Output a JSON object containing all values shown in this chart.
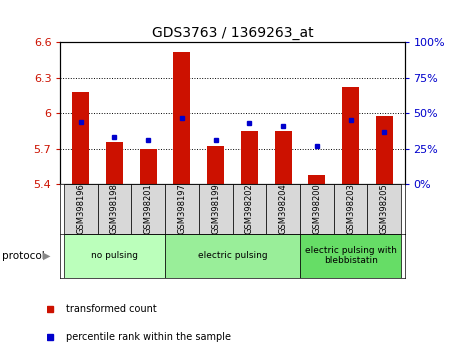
{
  "title": "GDS3763 / 1369263_at",
  "samples": [
    "GSM398196",
    "GSM398198",
    "GSM398201",
    "GSM398197",
    "GSM398199",
    "GSM398202",
    "GSM398204",
    "GSM398200",
    "GSM398203",
    "GSM398205"
  ],
  "red_values": [
    6.18,
    5.76,
    5.7,
    6.52,
    5.72,
    5.85,
    5.85,
    5.48,
    6.22,
    5.98
  ],
  "blue_values": [
    44,
    33,
    31,
    47,
    31,
    43,
    41,
    27,
    45,
    37
  ],
  "ylim": [
    5.4,
    6.6
  ],
  "y2lim": [
    0,
    100
  ],
  "yticks": [
    5.4,
    5.7,
    6.0,
    6.3,
    6.6
  ],
  "y2ticks": [
    0,
    25,
    50,
    75,
    100
  ],
  "bar_color": "#cc1100",
  "dot_color": "#0000cc",
  "baseline": 5.4,
  "groups": [
    {
      "label": "no pulsing",
      "start": 0,
      "end": 3,
      "color": "#bbffbb"
    },
    {
      "label": "electric pulsing",
      "start": 3,
      "end": 7,
      "color": "#99ee99"
    },
    {
      "label": "electric pulsing with\nblebbistatin",
      "start": 7,
      "end": 10,
      "color": "#66dd66"
    }
  ],
  "legend_items": [
    {
      "label": "transformed count",
      "color": "#cc1100"
    },
    {
      "label": "percentile rank within the sample",
      "color": "#0000cc"
    }
  ],
  "protocol_label": "protocol",
  "bar_width": 0.5,
  "font_size": 8,
  "title_font_size": 10,
  "label_bg_color": "#d8d8d8",
  "spine_color": "#000000"
}
